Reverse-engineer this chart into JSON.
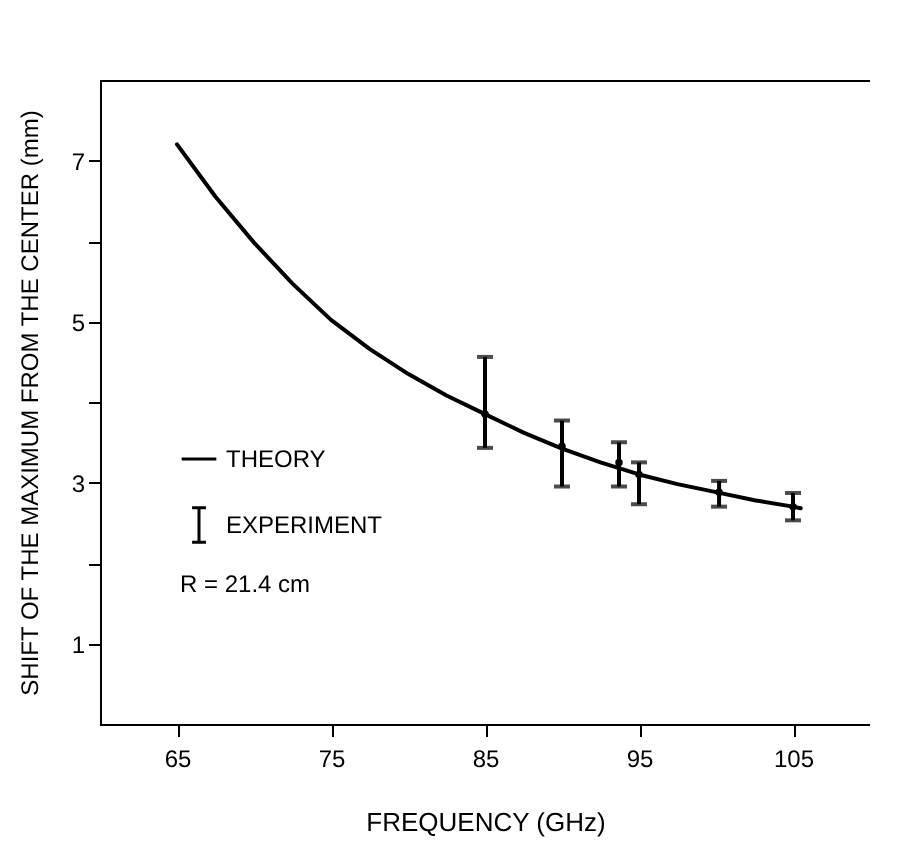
{
  "chart_data": {
    "type": "line",
    "xlabel": "FREQUENCY (GHz)",
    "ylabel": "SHIFT OF THE MAXIMUM FROM THE CENTER (mm)",
    "xlim": [
      60,
      110
    ],
    "xticks": [
      65,
      75,
      85,
      95,
      105
    ],
    "ylim": [
      0,
      8
    ],
    "yticks": [
      1,
      {
        "value": 2,
        "label": null
      },
      3,
      {
        "value": 4,
        "label": null
      },
      5,
      {
        "value": 6,
        "label": null
      },
      7
    ],
    "series": [
      {
        "name": "THEORY",
        "color": "#000000",
        "line_style": "solid",
        "marker": "none",
        "x": [
          65,
          67.5,
          70,
          72.5,
          75,
          77.5,
          80,
          82.5,
          85,
          87.5,
          90,
          92.5,
          95,
          97.5,
          100,
          102.5,
          105,
          105.5
        ],
        "values": [
          7.2,
          6.55,
          5.98,
          5.47,
          5.02,
          4.66,
          4.35,
          4.08,
          3.85,
          3.62,
          3.42,
          3.25,
          3.1,
          2.98,
          2.88,
          2.78,
          2.7,
          2.68
        ]
      },
      {
        "name": "EXPERIMENT",
        "type": "scatter",
        "color": "#000000",
        "marker": "circle",
        "x": [
          85,
          90,
          93.7,
          95,
          100.2,
          105
        ],
        "values": [
          3.85,
          3.45,
          3.25,
          3.1,
          2.88,
          2.7
        ],
        "errors": [
          [
            3.43,
            4.56
          ],
          [
            2.95,
            3.77
          ],
          [
            2.95,
            3.5
          ],
          [
            2.73,
            3.25
          ],
          [
            2.7,
            3.02
          ],
          [
            2.53,
            2.87
          ]
        ]
      }
    ],
    "legend": "bottom left",
    "annotations": [
      "R = 21.4 cm"
    ]
  }
}
